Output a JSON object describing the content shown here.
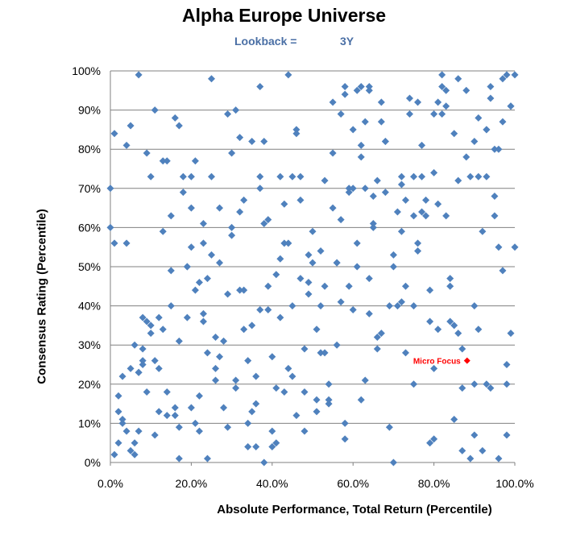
{
  "chart_data": {
    "type": "scatter",
    "title": "Alpha Europe Universe",
    "subtitle_label": "Lookback =",
    "subtitle_value": "3Y",
    "xlabel": "Absolute Performance, Total Return (Percentile)",
    "ylabel": "Consensus Rating (Percentile)",
    "xlim": [
      0,
      1
    ],
    "ylim": [
      0,
      1
    ],
    "x_ticks": [
      "0.0%",
      "20.0%",
      "40.0%",
      "60.0%",
      "80.0%",
      "100.0%"
    ],
    "y_ticks": [
      "0%",
      "10%",
      "20%",
      "30%",
      "40%",
      "50%",
      "60%",
      "70%",
      "80%",
      "90%",
      "100%"
    ],
    "grid": "horizontal",
    "colors": {
      "points": "#4f81bd",
      "highlight": "#ff0000",
      "grid": "#808080"
    },
    "points": [
      [
        0.0,
        0.7
      ],
      [
        0.0,
        0.6
      ],
      [
        0.01,
        0.56
      ],
      [
        0.01,
        0.84
      ],
      [
        0.01,
        0.02
      ],
      [
        0.02,
        0.13
      ],
      [
        0.02,
        0.17
      ],
      [
        0.02,
        0.05
      ],
      [
        0.03,
        0.11
      ],
      [
        0.03,
        0.1
      ],
      [
        0.03,
        0.22
      ],
      [
        0.04,
        0.56
      ],
      [
        0.04,
        0.08
      ],
      [
        0.04,
        0.81
      ],
      [
        0.05,
        0.86
      ],
      [
        0.05,
        0.03
      ],
      [
        0.05,
        0.24
      ],
      [
        0.06,
        0.02
      ],
      [
        0.06,
        0.3
      ],
      [
        0.06,
        0.05
      ],
      [
        0.07,
        0.23
      ],
      [
        0.07,
        0.08
      ],
      [
        0.07,
        0.23
      ],
      [
        0.07,
        0.99
      ],
      [
        0.08,
        0.25
      ],
      [
        0.08,
        0.26
      ],
      [
        0.08,
        0.29
      ],
      [
        0.08,
        0.37
      ],
      [
        0.09,
        0.36
      ],
      [
        0.09,
        0.79
      ],
      [
        0.09,
        0.18
      ],
      [
        0.1,
        0.33
      ],
      [
        0.1,
        0.35
      ],
      [
        0.1,
        0.73
      ],
      [
        0.11,
        0.26
      ],
      [
        0.11,
        0.9
      ],
      [
        0.11,
        0.07
      ],
      [
        0.12,
        0.37
      ],
      [
        0.12,
        0.24
      ],
      [
        0.12,
        0.13
      ],
      [
        0.13,
        0.34
      ],
      [
        0.13,
        0.59
      ],
      [
        0.13,
        0.77
      ],
      [
        0.14,
        0.12
      ],
      [
        0.14,
        0.18
      ],
      [
        0.14,
        0.77
      ],
      [
        0.15,
        0.4
      ],
      [
        0.15,
        0.49
      ],
      [
        0.15,
        0.63
      ],
      [
        0.16,
        0.88
      ],
      [
        0.16,
        0.12
      ],
      [
        0.16,
        0.14
      ],
      [
        0.17,
        0.09
      ],
      [
        0.17,
        0.01
      ],
      [
        0.17,
        0.31
      ],
      [
        0.17,
        0.86
      ],
      [
        0.18,
        0.73
      ],
      [
        0.18,
        0.69
      ],
      [
        0.19,
        0.5
      ],
      [
        0.19,
        0.5
      ],
      [
        0.19,
        0.37
      ],
      [
        0.2,
        0.55
      ],
      [
        0.2,
        0.65
      ],
      [
        0.2,
        0.14
      ],
      [
        0.2,
        0.73
      ],
      [
        0.21,
        0.44
      ],
      [
        0.21,
        0.77
      ],
      [
        0.21,
        0.1
      ],
      [
        0.22,
        0.46
      ],
      [
        0.22,
        0.17
      ],
      [
        0.22,
        0.08
      ],
      [
        0.23,
        0.38
      ],
      [
        0.23,
        0.36
      ],
      [
        0.23,
        0.61
      ],
      [
        0.23,
        0.56
      ],
      [
        0.24,
        0.28
      ],
      [
        0.24,
        0.47
      ],
      [
        0.24,
        0.01
      ],
      [
        0.25,
        0.53
      ],
      [
        0.25,
        0.73
      ],
      [
        0.25,
        0.98
      ],
      [
        0.26,
        0.24
      ],
      [
        0.26,
        0.21
      ],
      [
        0.26,
        0.32
      ],
      [
        0.27,
        0.27
      ],
      [
        0.27,
        0.51
      ],
      [
        0.27,
        0.65
      ],
      [
        0.28,
        0.14
      ],
      [
        0.28,
        0.31
      ],
      [
        0.29,
        0.09
      ],
      [
        0.29,
        0.43
      ],
      [
        0.29,
        0.89
      ],
      [
        0.3,
        0.79
      ],
      [
        0.3,
        0.6
      ],
      [
        0.3,
        0.58
      ],
      [
        0.31,
        0.9
      ],
      [
        0.31,
        0.21
      ],
      [
        0.31,
        0.19
      ],
      [
        0.32,
        0.44
      ],
      [
        0.32,
        0.64
      ],
      [
        0.32,
        0.83
      ],
      [
        0.33,
        0.34
      ],
      [
        0.33,
        0.44
      ],
      [
        0.33,
        0.67
      ],
      [
        0.34,
        0.1
      ],
      [
        0.34,
        0.04
      ],
      [
        0.34,
        0.26
      ],
      [
        0.35,
        0.35
      ],
      [
        0.35,
        0.82
      ],
      [
        0.35,
        0.13
      ],
      [
        0.36,
        0.22
      ],
      [
        0.36,
        0.15
      ],
      [
        0.36,
        0.04
      ],
      [
        0.37,
        0.73
      ],
      [
        0.37,
        0.7
      ],
      [
        0.37,
        0.39
      ],
      [
        0.37,
        0.96
      ],
      [
        0.38,
        0.82
      ],
      [
        0.38,
        0.0
      ],
      [
        0.38,
        0.61
      ],
      [
        0.39,
        0.62
      ],
      [
        0.39,
        0.45
      ],
      [
        0.39,
        0.39
      ],
      [
        0.4,
        0.27
      ],
      [
        0.4,
        0.08
      ],
      [
        0.4,
        0.04
      ],
      [
        0.41,
        0.19
      ],
      [
        0.41,
        0.05
      ],
      [
        0.41,
        0.48
      ],
      [
        0.42,
        0.52
      ],
      [
        0.42,
        0.37
      ],
      [
        0.42,
        0.73
      ],
      [
        0.43,
        0.18
      ],
      [
        0.43,
        0.56
      ],
      [
        0.43,
        0.66
      ],
      [
        0.44,
        0.24
      ],
      [
        0.44,
        0.56
      ],
      [
        0.44,
        0.99
      ],
      [
        0.45,
        0.22
      ],
      [
        0.45,
        0.73
      ],
      [
        0.45,
        0.4
      ],
      [
        0.46,
        0.12
      ],
      [
        0.46,
        0.85
      ],
      [
        0.46,
        0.84
      ],
      [
        0.47,
        0.47
      ],
      [
        0.47,
        0.67
      ],
      [
        0.47,
        0.73
      ],
      [
        0.48,
        0.08
      ],
      [
        0.48,
        0.18
      ],
      [
        0.48,
        0.29
      ],
      [
        0.49,
        0.43
      ],
      [
        0.49,
        0.46
      ],
      [
        0.49,
        0.53
      ],
      [
        0.5,
        0.59
      ],
      [
        0.5,
        0.51
      ],
      [
        0.51,
        0.16
      ],
      [
        0.51,
        0.34
      ],
      [
        0.51,
        0.13
      ],
      [
        0.52,
        0.28
      ],
      [
        0.52,
        0.4
      ],
      [
        0.52,
        0.54
      ],
      [
        0.53,
        0.28
      ],
      [
        0.53,
        0.72
      ],
      [
        0.53,
        0.45
      ],
      [
        0.54,
        0.15
      ],
      [
        0.54,
        0.2
      ],
      [
        0.54,
        0.16
      ],
      [
        0.55,
        0.92
      ],
      [
        0.55,
        0.79
      ],
      [
        0.55,
        0.65
      ],
      [
        0.56,
        0.51
      ],
      [
        0.56,
        0.51
      ],
      [
        0.56,
        0.3
      ],
      [
        0.57,
        0.89
      ],
      [
        0.57,
        0.62
      ],
      [
        0.57,
        0.41
      ],
      [
        0.58,
        0.1
      ],
      [
        0.58,
        0.96
      ],
      [
        0.58,
        0.94
      ],
      [
        0.58,
        0.06
      ],
      [
        0.59,
        0.45
      ],
      [
        0.59,
        0.7
      ],
      [
        0.59,
        0.69
      ],
      [
        0.6,
        0.7
      ],
      [
        0.6,
        0.85
      ],
      [
        0.6,
        0.39
      ],
      [
        0.61,
        0.56
      ],
      [
        0.61,
        0.5
      ],
      [
        0.61,
        0.95
      ],
      [
        0.62,
        0.16
      ],
      [
        0.62,
        0.96
      ],
      [
        0.62,
        0.78
      ],
      [
        0.62,
        0.81
      ],
      [
        0.63,
        0.21
      ],
      [
        0.63,
        0.7
      ],
      [
        0.63,
        0.87
      ],
      [
        0.64,
        0.47
      ],
      [
        0.64,
        0.38
      ],
      [
        0.64,
        0.96
      ],
      [
        0.64,
        0.95
      ],
      [
        0.65,
        0.68
      ],
      [
        0.65,
        0.61
      ],
      [
        0.65,
        0.6
      ],
      [
        0.66,
        0.72
      ],
      [
        0.66,
        0.29
      ],
      [
        0.66,
        0.32
      ],
      [
        0.67,
        0.87
      ],
      [
        0.67,
        0.33
      ],
      [
        0.67,
        0.92
      ],
      [
        0.68,
        0.69
      ],
      [
        0.68,
        0.82
      ],
      [
        0.68,
        0.82
      ],
      [
        0.69,
        0.4
      ],
      [
        0.69,
        0.09
      ],
      [
        0.7,
        0.53
      ],
      [
        0.7,
        0.5
      ],
      [
        0.7,
        0.0
      ],
      [
        0.71,
        0.4
      ],
      [
        0.71,
        0.64
      ],
      [
        0.72,
        0.71
      ],
      [
        0.72,
        0.41
      ],
      [
        0.72,
        0.59
      ],
      [
        0.72,
        0.73
      ],
      [
        0.73,
        0.45
      ],
      [
        0.73,
        0.67
      ],
      [
        0.73,
        0.28
      ],
      [
        0.74,
        0.93
      ],
      [
        0.74,
        0.89
      ],
      [
        0.75,
        0.63
      ],
      [
        0.75,
        0.4
      ],
      [
        0.75,
        0.2
      ],
      [
        0.75,
        0.73
      ],
      [
        0.76,
        0.56
      ],
      [
        0.76,
        0.54
      ],
      [
        0.76,
        0.92
      ],
      [
        0.77,
        0.81
      ],
      [
        0.77,
        0.73
      ],
      [
        0.77,
        0.64
      ],
      [
        0.78,
        0.63
      ],
      [
        0.78,
        0.67
      ],
      [
        0.79,
        0.44
      ],
      [
        0.79,
        0.05
      ],
      [
        0.79,
        0.36
      ],
      [
        0.8,
        0.06
      ],
      [
        0.8,
        0.24
      ],
      [
        0.8,
        0.89
      ],
      [
        0.8,
        0.74
      ],
      [
        0.81,
        0.34
      ],
      [
        0.81,
        0.92
      ],
      [
        0.81,
        0.66
      ],
      [
        0.82,
        0.89
      ],
      [
        0.82,
        0.99
      ],
      [
        0.82,
        0.96
      ],
      [
        0.83,
        0.91
      ],
      [
        0.83,
        0.95
      ],
      [
        0.83,
        0.63
      ],
      [
        0.84,
        0.47
      ],
      [
        0.84,
        0.45
      ],
      [
        0.84,
        0.36
      ],
      [
        0.85,
        0.84
      ],
      [
        0.85,
        0.35
      ],
      [
        0.85,
        0.11
      ],
      [
        0.86,
        0.72
      ],
      [
        0.86,
        0.33
      ],
      [
        0.86,
        0.98
      ],
      [
        0.87,
        0.29
      ],
      [
        0.87,
        0.19
      ],
      [
        0.87,
        0.03
      ],
      [
        0.88,
        0.95
      ],
      [
        0.88,
        0.78
      ],
      [
        0.89,
        0.73
      ],
      [
        0.89,
        0.01
      ],
      [
        0.9,
        0.4
      ],
      [
        0.9,
        0.2
      ],
      [
        0.9,
        0.07
      ],
      [
        0.9,
        0.82
      ],
      [
        0.91,
        0.88
      ],
      [
        0.91,
        0.73
      ],
      [
        0.91,
        0.34
      ],
      [
        0.92,
        0.59
      ],
      [
        0.92,
        0.03
      ],
      [
        0.93,
        0.85
      ],
      [
        0.93,
        0.85
      ],
      [
        0.93,
        0.2
      ],
      [
        0.93,
        0.73
      ],
      [
        0.94,
        0.93
      ],
      [
        0.94,
        0.96
      ],
      [
        0.94,
        0.19
      ],
      [
        0.95,
        0.68
      ],
      [
        0.95,
        0.8
      ],
      [
        0.95,
        0.63
      ],
      [
        0.96,
        0.01
      ],
      [
        0.96,
        0.8
      ],
      [
        0.96,
        0.55
      ],
      [
        0.97,
        0.87
      ],
      [
        0.97,
        0.98
      ],
      [
        0.97,
        0.49
      ],
      [
        0.98,
        0.25
      ],
      [
        0.98,
        0.99
      ],
      [
        0.98,
        0.2
      ],
      [
        0.98,
        0.07
      ],
      [
        0.99,
        0.91
      ],
      [
        0.99,
        0.33
      ],
      [
        0.99,
        0.91
      ],
      [
        1.0,
        0.99
      ],
      [
        1.0,
        0.55
      ]
    ],
    "highlight": {
      "label": "Micro Focus",
      "x": 0.882,
      "y": 0.26
    }
  }
}
